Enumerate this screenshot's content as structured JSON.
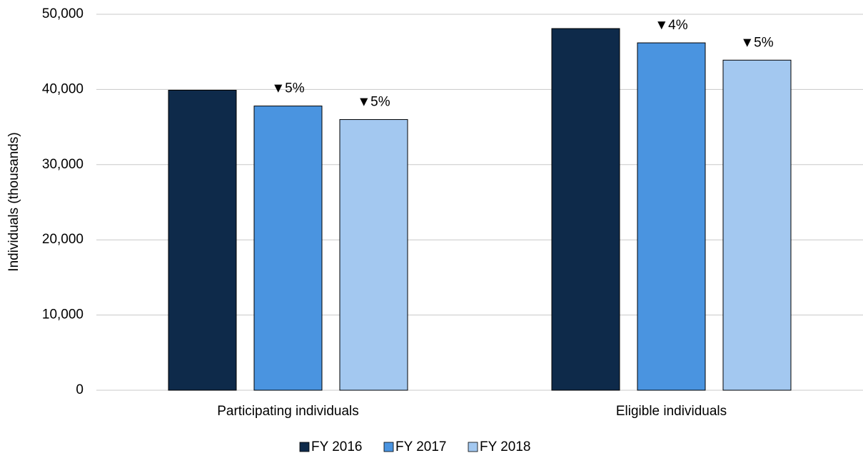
{
  "chart_data": {
    "type": "bar",
    "y_label": "Individuals (thousands)",
    "categories": [
      "Participating individuals",
      "Eligible individuals"
    ],
    "series": [
      {
        "name": "FY 2016",
        "color": "#0e2a4a",
        "values": [
          39900,
          48100
        ],
        "change_labels": [
          null,
          null
        ]
      },
      {
        "name": "FY 2017",
        "color": "#4a94e0",
        "values": [
          37800,
          46200
        ],
        "change_labels": [
          "▼5%",
          "▼4%"
        ]
      },
      {
        "name": "FY 2018",
        "color": "#a3c8f0",
        "values": [
          36000,
          43900
        ],
        "change_labels": [
          "▼5%",
          "▼5%"
        ]
      }
    ],
    "ylim": [
      0,
      50000
    ],
    "yticks": [
      0,
      {
        "value": 10000,
        "label": "10,000"
      },
      {
        "value": 20000,
        "label": "20,000"
      },
      {
        "value": 30000,
        "label": "30,000"
      },
      {
        "value": 40000,
        "label": "40,000"
      },
      {
        "value": 50000,
        "label": "50,000"
      }
    ],
    "grid": true,
    "legend": "bottom"
  }
}
